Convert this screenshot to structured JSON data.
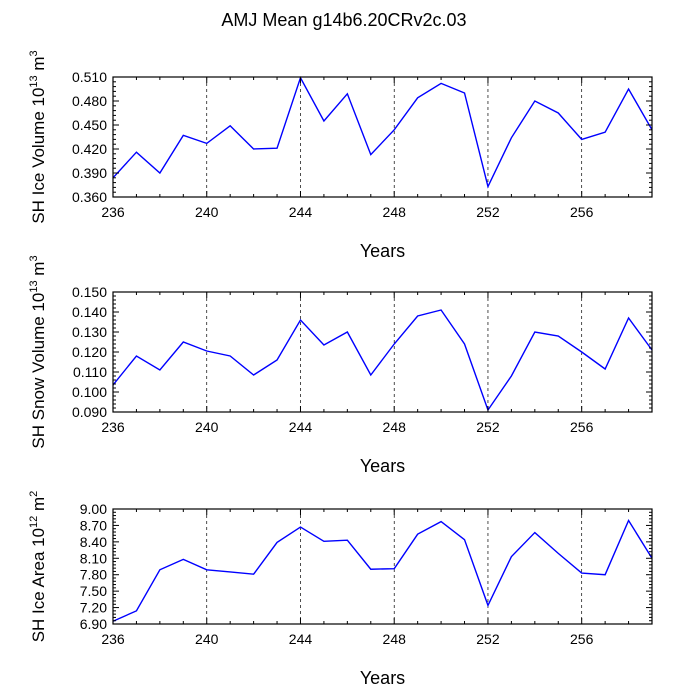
{
  "title": "AMJ Mean g14b6.20CRv2c.03",
  "colors": {
    "line": "#0000ff",
    "axis": "#000000",
    "grid": "#000000"
  },
  "chart_data": [
    {
      "type": "line",
      "id": "ice-volume",
      "xlabel": "Years",
      "ylabel": {
        "main": "SH Ice Volume 10",
        "exp": "13",
        "unit_pre": " m",
        "unit_exp": "3"
      },
      "x": [
        236,
        237,
        238,
        239,
        240,
        241,
        242,
        243,
        244,
        245,
        246,
        247,
        248,
        249,
        250,
        251,
        252,
        253,
        254,
        255,
        256,
        257,
        258,
        259
      ],
      "values": [
        0.384,
        0.416,
        0.39,
        0.437,
        0.427,
        0.449,
        0.42,
        0.421,
        0.509,
        0.455,
        0.489,
        0.413,
        0.444,
        0.484,
        0.502,
        0.49,
        0.373,
        0.434,
        0.48,
        0.465,
        0.432,
        0.441,
        0.495,
        0.444
      ],
      "xlim": [
        236,
        259
      ],
      "ylim": [
        0.36,
        0.51
      ],
      "yticks": [
        "0.360",
        "0.390",
        "0.420",
        "0.450",
        "0.480",
        "0.510"
      ],
      "xticks": [
        "236",
        "240",
        "244",
        "248",
        "252",
        "256"
      ],
      "grid_x": [
        240,
        244,
        248,
        252,
        256
      ]
    },
    {
      "type": "line",
      "id": "snow-volume",
      "xlabel": "Years",
      "ylabel": {
        "main": "SH Snow Volume 10",
        "exp": "13",
        "unit_pre": " m",
        "unit_exp": "3"
      },
      "x": [
        236,
        237,
        238,
        239,
        240,
        241,
        242,
        243,
        244,
        245,
        246,
        247,
        248,
        249,
        250,
        251,
        252,
        253,
        254,
        255,
        256,
        257,
        258,
        259
      ],
      "values": [
        0.1035,
        0.118,
        0.111,
        0.125,
        0.1205,
        0.118,
        0.1085,
        0.116,
        0.136,
        0.1235,
        0.13,
        0.1085,
        0.124,
        0.138,
        0.141,
        0.124,
        0.091,
        0.108,
        0.13,
        0.128,
        0.12,
        0.1115,
        0.137,
        0.121
      ],
      "xlim": [
        236,
        259
      ],
      "ylim": [
        0.09,
        0.15
      ],
      "yticks": [
        "0.090",
        "0.100",
        "0.110",
        "0.120",
        "0.130",
        "0.140",
        "0.150"
      ],
      "xticks": [
        "236",
        "240",
        "244",
        "248",
        "252",
        "256"
      ],
      "grid_x": [
        240,
        244,
        248,
        252,
        256
      ]
    },
    {
      "type": "line",
      "id": "ice-area",
      "xlabel": "Years",
      "ylabel": {
        "main": "SH Ice Area 10",
        "exp": "12",
        "unit_pre": " m",
        "unit_exp": "2"
      },
      "x": [
        236,
        237,
        238,
        239,
        240,
        241,
        242,
        243,
        244,
        245,
        246,
        247,
        248,
        249,
        250,
        251,
        252,
        253,
        254,
        255,
        256,
        257,
        258,
        259
      ],
      "values": [
        6.95,
        7.14,
        7.89,
        8.08,
        7.89,
        7.85,
        7.81,
        8.39,
        8.67,
        8.41,
        8.43,
        7.9,
        7.91,
        8.54,
        8.77,
        8.44,
        7.24,
        8.13,
        8.57,
        8.19,
        7.83,
        7.8,
        8.79,
        8.1
      ],
      "xlim": [
        236,
        259
      ],
      "ylim": [
        6.9,
        9.0
      ],
      "yticks": [
        "6.90",
        "7.20",
        "7.50",
        "7.80",
        "8.10",
        "8.40",
        "8.70",
        "9.00"
      ],
      "xticks": [
        "236",
        "240",
        "244",
        "248",
        "252",
        "256"
      ],
      "grid_x": [
        240,
        244,
        248,
        252,
        256
      ]
    }
  ]
}
